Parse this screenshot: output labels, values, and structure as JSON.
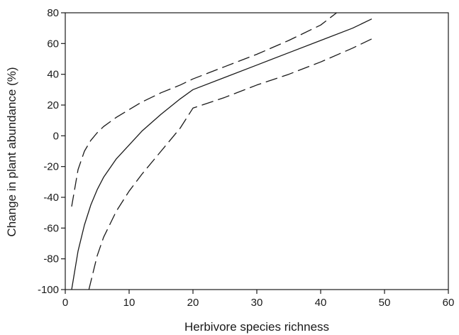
{
  "chart_data": {
    "type": "line",
    "title": "",
    "xlabel": "Herbivore species richness",
    "ylabel": "Change in plant abundance (%)",
    "xlim": [
      0,
      60
    ],
    "ylim": [
      -100,
      80
    ],
    "xticks": [
      0,
      10,
      20,
      30,
      40,
      50,
      60
    ],
    "yticks": [
      -100,
      -80,
      -60,
      -40,
      -20,
      0,
      20,
      40,
      60,
      80
    ],
    "grid": false,
    "legend": "none",
    "series": [
      {
        "style": "solid",
        "color": "#1a1a1a",
        "x": [
          1,
          2,
          3,
          4,
          5,
          6,
          8,
          10,
          12,
          15,
          18,
          20,
          25,
          30,
          35,
          40,
          45,
          48
        ],
        "y": [
          -100,
          -75,
          -58,
          -45,
          -35,
          -27,
          -15,
          -6,
          3,
          14,
          24,
          30,
          38,
          46,
          54,
          62,
          70,
          76
        ]
      },
      {
        "style": "dashed",
        "color": "#1a1a1a",
        "x": [
          1,
          2,
          3,
          4,
          5,
          6,
          8,
          10,
          12,
          15,
          18,
          20,
          25,
          30,
          35,
          40,
          42.5
        ],
        "y": [
          -46,
          -22,
          -10,
          -3,
          2,
          6,
          12,
          17,
          22,
          28,
          33,
          37,
          45,
          53,
          62,
          72,
          80
        ]
      },
      {
        "style": "dashed",
        "color": "#1a1a1a",
        "x": [
          3.7,
          5,
          6,
          8,
          10,
          12,
          15,
          18,
          20,
          25,
          30,
          35,
          40,
          45,
          48
        ],
        "y": [
          -100,
          -78,
          -66,
          -49,
          -36,
          -25,
          -10,
          5,
          18,
          25,
          33,
          40,
          48,
          57,
          63
        ]
      }
    ]
  }
}
